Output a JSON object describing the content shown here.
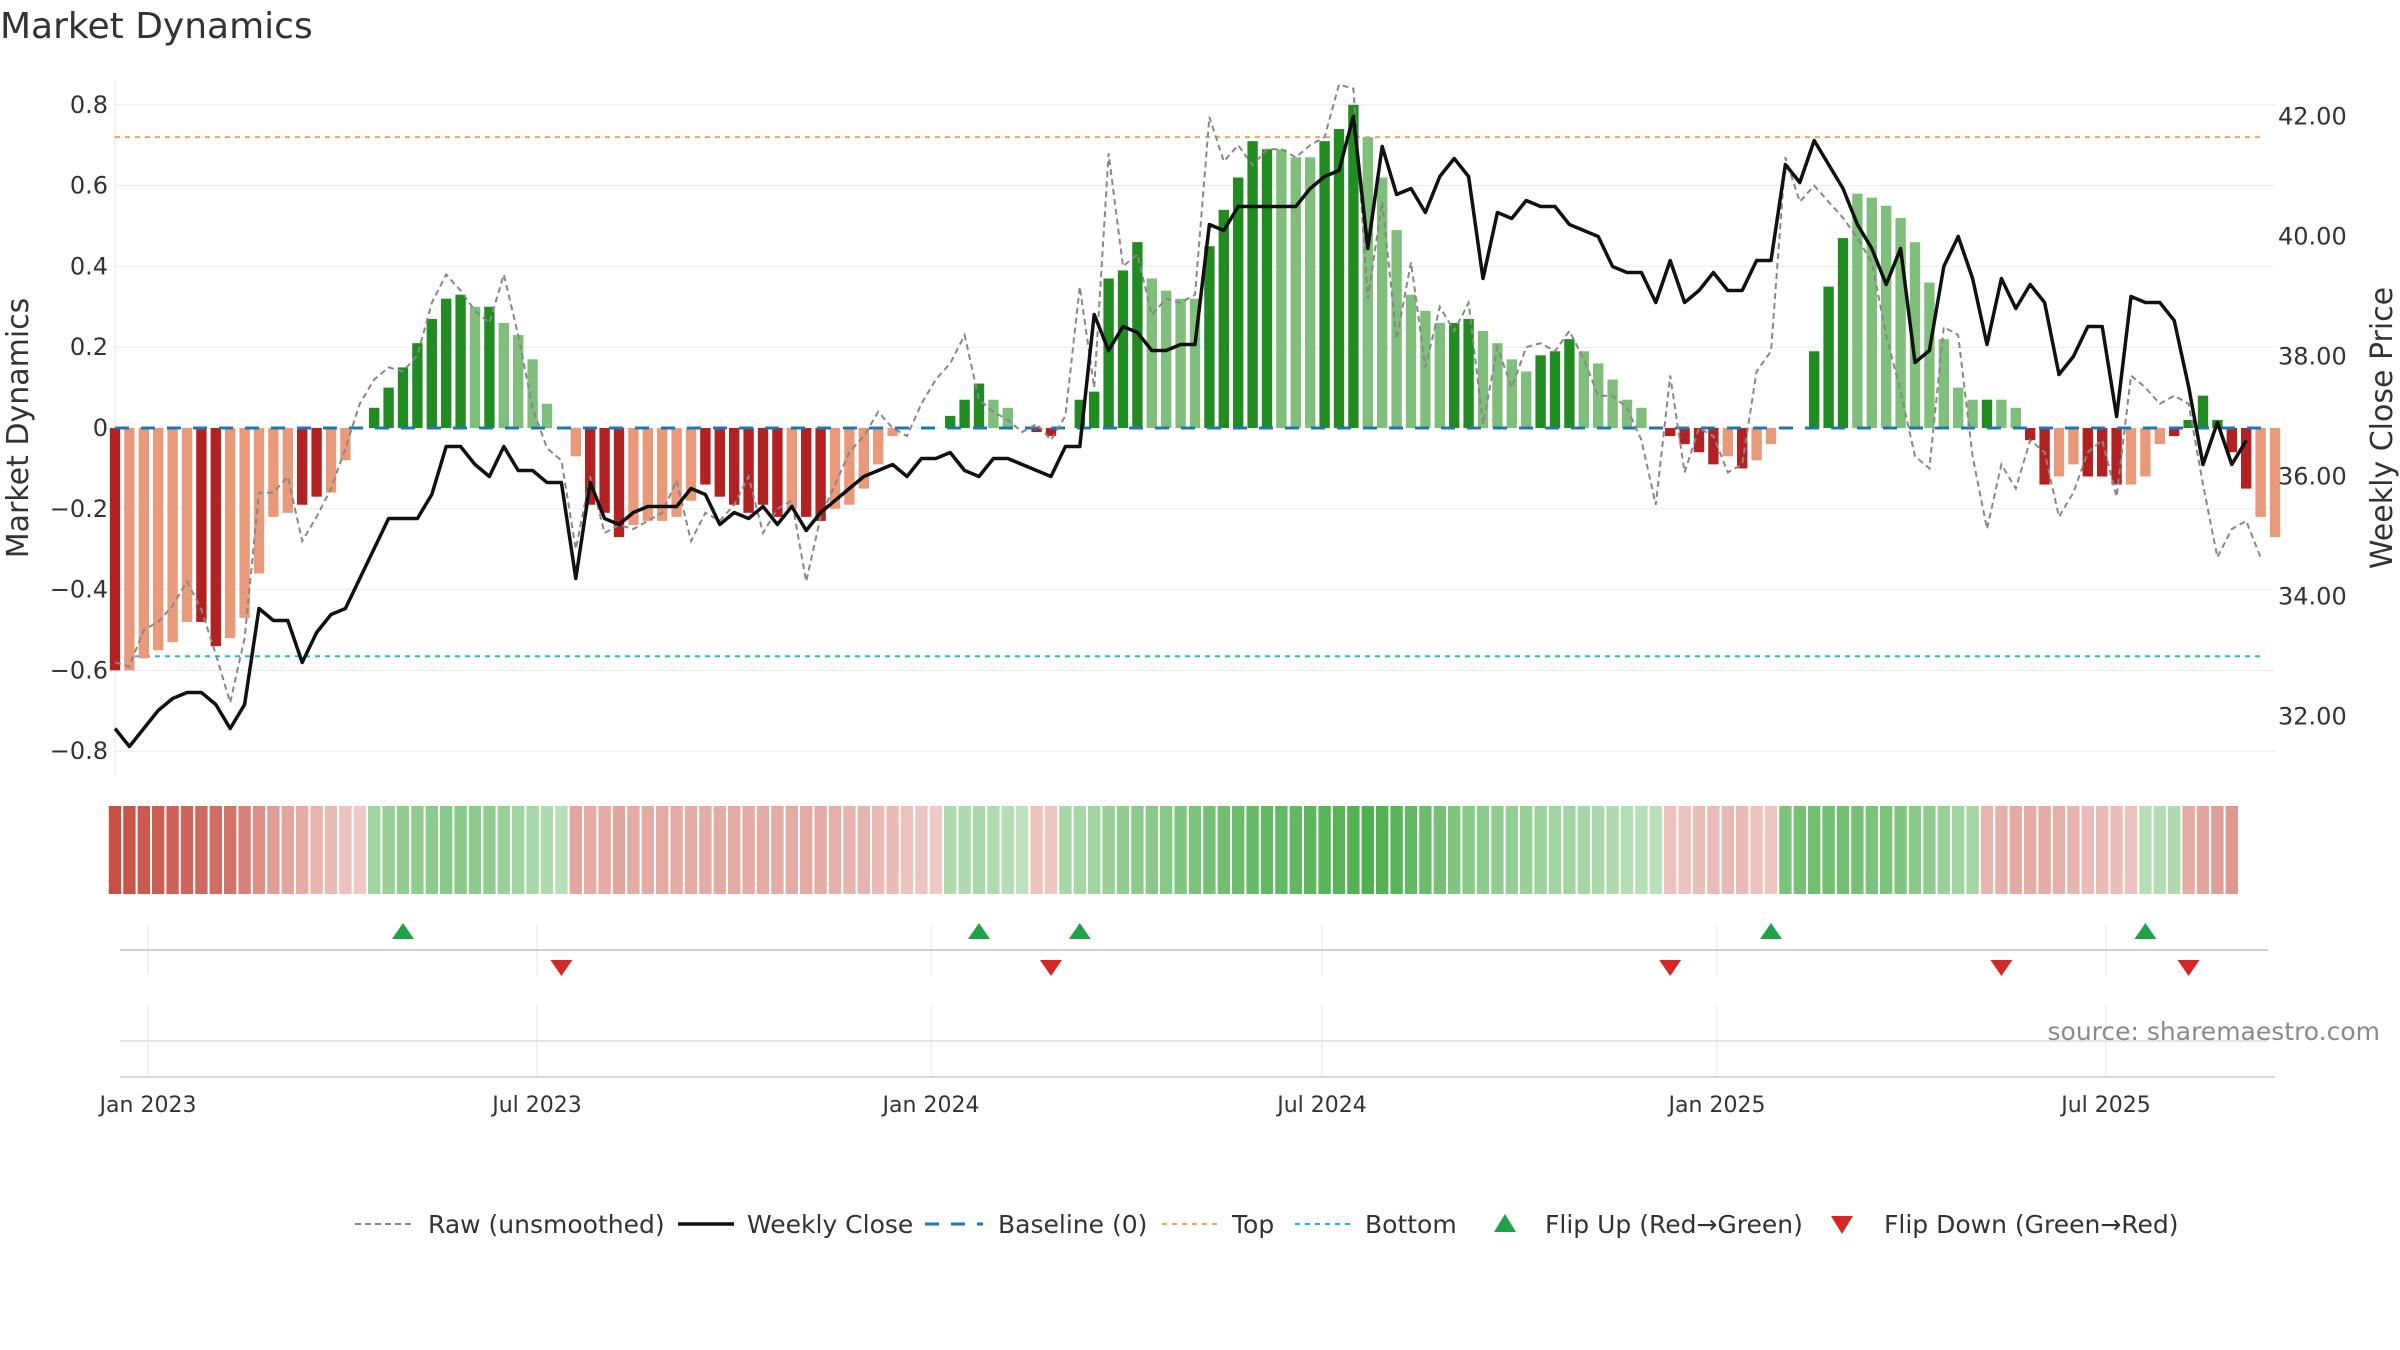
{
  "chart_data": {
    "type": "bar",
    "title": "Market Dynamics",
    "ylabel": "Market Dynamics",
    "y2label": "Weekly Close Price",
    "ylim": [
      -0.8,
      0.8
    ],
    "y2lim": [
      32.0,
      42.0
    ],
    "yticks": [
      "0.8",
      "0.6",
      "0.4",
      "0.2",
      "0",
      "−0.2",
      "−0.4",
      "−0.6",
      "−0.8"
    ],
    "y2ticks": [
      "42.00",
      "40.00",
      "38.00",
      "36.00",
      "34.00",
      "32.00"
    ],
    "xticks": [
      "Jan 2023",
      "Jul 2023",
      "Jan 2024",
      "Jul 2024",
      "Jan 2025",
      "Jul 2025"
    ],
    "top_line": 0.72,
    "bottom_line": -0.565,
    "source_note": "source: sharemaestro.com",
    "colors": {
      "strong_green": "#228b22",
      "light_green": "#7fbf7b",
      "strong_red": "#b22222",
      "light_red": "#e89a7a",
      "close_line": "#111111",
      "raw_line": "#888888",
      "baseline": "#1f77b4",
      "top": "#f4a261",
      "bottom": "#17becf",
      "flip_up": "#22a14a",
      "flip_down": "#d62728"
    },
    "legend": {
      "placement": "bottom-center",
      "entries": [
        {
          "label": "Raw (unsmoothed)",
          "style": "gray-dash"
        },
        {
          "label": "Weekly Close",
          "style": "black-line"
        },
        {
          "label": "Baseline (0)",
          "style": "blue-dash"
        },
        {
          "label": "Top",
          "style": "orange-dot"
        },
        {
          "label": "Bottom",
          "style": "cyan-dot"
        },
        {
          "label": "Flip Up (Red→Green)",
          "style": "up-triangle"
        },
        {
          "label": "Flip Down (Green→Red)",
          "style": "down-triangle"
        }
      ]
    },
    "flips_up": [
      20,
      60,
      67,
      115,
      141
    ],
    "flips_down": [
      31,
      65,
      108,
      131,
      144
    ],
    "strength": [
      -0.6,
      -0.6,
      -0.57,
      -0.55,
      -0.53,
      -0.48,
      -0.48,
      -0.54,
      -0.52,
      -0.47,
      -0.36,
      -0.22,
      -0.21,
      -0.19,
      -0.17,
      -0.16,
      -0.08,
      0.0,
      0.05,
      0.1,
      0.15,
      0.21,
      0.27,
      0.32,
      0.33,
      0.3,
      0.3,
      0.26,
      0.23,
      0.17,
      0.06,
      0.0,
      -0.07,
      -0.19,
      -0.21,
      -0.27,
      -0.24,
      -0.23,
      -0.23,
      -0.22,
      -0.18,
      -0.14,
      -0.17,
      -0.19,
      -0.21,
      -0.19,
      -0.22,
      -0.2,
      -0.22,
      -0.23,
      -0.2,
      -0.19,
      -0.15,
      -0.09,
      -0.02,
      0.0,
      0.0,
      0.0,
      0.03,
      0.07,
      0.11,
      0.07,
      0.05,
      0.0,
      -0.01,
      -0.02,
      0.0,
      0.07,
      0.09,
      0.37,
      0.39,
      0.46,
      0.37,
      0.34,
      0.32,
      0.32,
      0.45,
      0.54,
      0.62,
      0.71,
      0.69,
      0.69,
      0.67,
      0.67,
      0.71,
      0.74,
      0.8,
      0.72,
      0.62,
      0.49,
      0.33,
      0.29,
      0.26,
      0.26,
      0.27,
      0.24,
      0.21,
      0.17,
      0.14,
      0.18,
      0.19,
      0.22,
      0.19,
      0.16,
      0.12,
      0.07,
      0.05,
      0.0,
      -0.02,
      -0.04,
      -0.06,
      -0.09,
      -0.07,
      -0.1,
      -0.08,
      -0.04,
      0.0,
      0.0,
      0.19,
      0.35,
      0.47,
      0.58,
      0.57,
      0.55,
      0.52,
      0.46,
      0.36,
      0.22,
      0.1,
      0.07,
      0.07,
      0.07,
      0.05,
      -0.03,
      -0.14,
      -0.12,
      -0.09,
      -0.12,
      -0.12,
      -0.14,
      -0.14,
      -0.12,
      -0.04,
      -0.02,
      0.02,
      0.08,
      0.02,
      -0.06,
      -0.15,
      -0.22,
      -0.27
    ],
    "bar_style": [
      "s",
      "l",
      "l",
      "l",
      "l",
      "l",
      "s",
      "s",
      "l",
      "l",
      "l",
      "l",
      "l",
      "s",
      "s",
      "l",
      "l",
      "l",
      "s",
      "s",
      "s",
      "s",
      "s",
      "s",
      "s",
      "l",
      "s",
      "l",
      "l",
      "l",
      "l",
      "l",
      "l",
      "s",
      "s",
      "s",
      "l",
      "l",
      "l",
      "l",
      "l",
      "s",
      "s",
      "s",
      "s",
      "s",
      "s",
      "l",
      "s",
      "s",
      "l",
      "l",
      "l",
      "l",
      "l",
      "l",
      "l",
      "l",
      "s",
      "s",
      "s",
      "l",
      "l",
      "l",
      "s",
      "s",
      "l",
      "s",
      "s",
      "s",
      "s",
      "s",
      "l",
      "l",
      "l",
      "l",
      "s",
      "s",
      "s",
      "s",
      "s",
      "l",
      "l",
      "l",
      "s",
      "s",
      "s",
      "l",
      "l",
      "l",
      "l",
      "l",
      "l",
      "s",
      "s",
      "l",
      "l",
      "l",
      "l",
      "s",
      "s",
      "s",
      "l",
      "l",
      "l",
      "l",
      "l",
      "l",
      "s",
      "s",
      "s",
      "s",
      "l",
      "s",
      "l",
      "l",
      "l",
      "s",
      "s",
      "s",
      "s",
      "l",
      "l",
      "l",
      "l",
      "l",
      "l",
      "l",
      "l",
      "l",
      "s",
      "l",
      "l",
      "s",
      "s",
      "l",
      "l",
      "s",
      "s",
      "s",
      "l",
      "l",
      "l",
      "s",
      "s",
      "s",
      "s",
      "s",
      "s"
    ],
    "close": [
      31.8,
      31.5,
      31.8,
      32.1,
      32.3,
      32.4,
      32.4,
      32.2,
      31.8,
      32.2,
      33.8,
      33.6,
      33.6,
      32.9,
      33.4,
      33.7,
      33.8,
      34.3,
      34.8,
      35.3,
      35.3,
      35.3,
      35.7,
      36.5,
      36.5,
      36.2,
      36.0,
      36.5,
      36.1,
      36.1,
      35.9,
      35.9,
      34.3,
      35.9,
      35.3,
      35.2,
      35.4,
      35.5,
      35.5,
      35.5,
      35.8,
      35.7,
      35.2,
      35.4,
      35.3,
      35.5,
      35.2,
      35.5,
      35.1,
      35.4,
      35.6,
      35.8,
      36.0,
      36.1,
      36.2,
      36.0,
      36.3,
      36.3,
      36.4,
      36.1,
      36.0,
      36.3,
      36.3,
      36.2,
      36.1,
      36.0,
      36.5,
      36.5,
      38.7,
      38.1,
      38.5,
      38.4,
      38.1,
      38.1,
      38.2,
      38.2,
      40.2,
      40.1,
      40.5,
      40.5,
      40.5,
      40.5,
      40.5,
      40.8,
      41.0,
      41.1,
      42.0,
      39.8,
      41.5,
      40.7,
      40.8,
      40.4,
      41.0,
      41.3,
      41.0,
      39.3,
      40.4,
      40.3,
      40.6,
      40.5,
      40.5,
      40.2,
      40.1,
      40.0,
      39.5,
      39.4,
      39.4,
      38.9,
      39.6,
      38.9,
      39.1,
      39.4,
      39.1,
      39.1,
      39.6,
      39.6,
      41.2,
      40.9,
      41.6,
      41.2,
      40.8,
      40.2,
      39.8,
      39.2,
      39.8,
      37.9,
      38.1,
      39.5,
      40.0,
      39.3,
      38.2,
      39.3,
      38.8,
      39.2,
      38.9,
      37.7,
      38.0,
      38.5,
      38.5,
      37.0,
      39.0,
      38.9,
      38.9,
      38.6,
      37.5,
      36.2,
      36.9,
      36.2,
      36.6
    ],
    "raw": [
      -0.58,
      -0.59,
      -0.5,
      -0.48,
      -0.44,
      -0.38,
      -0.45,
      -0.56,
      -0.68,
      -0.52,
      -0.16,
      -0.16,
      -0.12,
      -0.28,
      -0.22,
      -0.15,
      -0.05,
      0.06,
      0.12,
      0.15,
      0.14,
      0.18,
      0.31,
      0.38,
      0.34,
      0.29,
      0.26,
      0.38,
      0.23,
      0.05,
      -0.05,
      -0.08,
      -0.3,
      -0.12,
      -0.26,
      -0.24,
      -0.25,
      -0.23,
      -0.21,
      -0.13,
      -0.28,
      -0.21,
      -0.23,
      -0.19,
      -0.12,
      -0.26,
      -0.2,
      -0.18,
      -0.38,
      -0.22,
      -0.14,
      -0.06,
      -0.02,
      0.04,
      0.0,
      -0.02,
      0.06,
      0.12,
      0.16,
      0.23,
      0.07,
      0.04,
      0.02,
      -0.01,
      0.01,
      -0.03,
      0.03,
      0.35,
      0.1,
      0.68,
      0.4,
      0.43,
      0.28,
      0.32,
      0.31,
      0.33,
      0.77,
      0.66,
      0.7,
      0.65,
      0.69,
      0.69,
      0.67,
      0.7,
      0.72,
      0.85,
      0.84,
      0.32,
      0.56,
      0.22,
      0.41,
      0.15,
      0.3,
      0.24,
      0.31,
      0.01,
      0.2,
      0.1,
      0.2,
      0.21,
      0.19,
      0.24,
      0.17,
      0.08,
      0.08,
      0.05,
      -0.03,
      -0.19,
      0.13,
      -0.11,
      0.0,
      -0.02,
      -0.11,
      -0.09,
      0.14,
      0.19,
      0.67,
      0.56,
      0.6,
      0.56,
      0.52,
      0.47,
      0.41,
      0.23,
      0.09,
      -0.07,
      -0.1,
      0.25,
      0.23,
      -0.07,
      -0.25,
      -0.09,
      -0.15,
      -0.03,
      -0.06,
      -0.22,
      -0.16,
      -0.06,
      -0.03,
      -0.17,
      0.13,
      0.1,
      0.06,
      0.08,
      0.06,
      -0.14,
      -0.32,
      -0.25,
      -0.23,
      -0.32
    ],
    "regime": [
      -0.95,
      -0.92,
      -0.88,
      -0.85,
      -0.82,
      -0.8,
      -0.78,
      -0.75,
      -0.7,
      -0.6,
      -0.5,
      -0.4,
      -0.35,
      -0.3,
      -0.25,
      -0.2,
      -0.15,
      -0.1,
      0.35,
      0.4,
      0.45,
      0.45,
      0.48,
      0.5,
      0.5,
      0.48,
      0.45,
      0.4,
      0.35,
      0.3,
      0.25,
      0.2,
      -0.35,
      -0.3,
      -0.3,
      -0.35,
      -0.3,
      -0.3,
      -0.32,
      -0.3,
      -0.3,
      -0.3,
      -0.3,
      -0.32,
      -0.3,
      -0.3,
      -0.3,
      -0.32,
      -0.32,
      -0.3,
      -0.28,
      -0.25,
      -0.25,
      -0.2,
      -0.2,
      -0.15,
      -0.12,
      -0.1,
      0.25,
      0.25,
      0.28,
      0.25,
      0.2,
      0.15,
      -0.15,
      -0.12,
      0.3,
      0.3,
      0.35,
      0.4,
      0.45,
      0.48,
      0.5,
      0.52,
      0.55,
      0.58,
      0.62,
      0.65,
      0.7,
      0.72,
      0.75,
      0.75,
      0.76,
      0.78,
      0.8,
      0.82,
      0.85,
      0.88,
      0.85,
      0.8,
      0.75,
      0.7,
      0.62,
      0.55,
      0.5,
      0.48,
      0.45,
      0.42,
      0.4,
      0.38,
      0.35,
      0.33,
      0.3,
      0.28,
      0.25,
      0.22,
      0.2,
      0.18,
      -0.15,
      -0.15,
      -0.18,
      -0.2,
      -0.22,
      -0.2,
      -0.15,
      -0.12,
      0.6,
      0.62,
      0.65,
      0.65,
      0.65,
      0.62,
      0.6,
      0.58,
      0.55,
      0.5,
      0.45,
      0.4,
      0.35,
      0.32,
      -0.25,
      -0.28,
      -0.3,
      -0.3,
      -0.3,
      -0.28,
      -0.25,
      -0.2,
      -0.2,
      -0.18,
      -0.15,
      0.2,
      0.22,
      0.25,
      -0.3,
      -0.35,
      -0.4,
      -0.45
    ]
  }
}
